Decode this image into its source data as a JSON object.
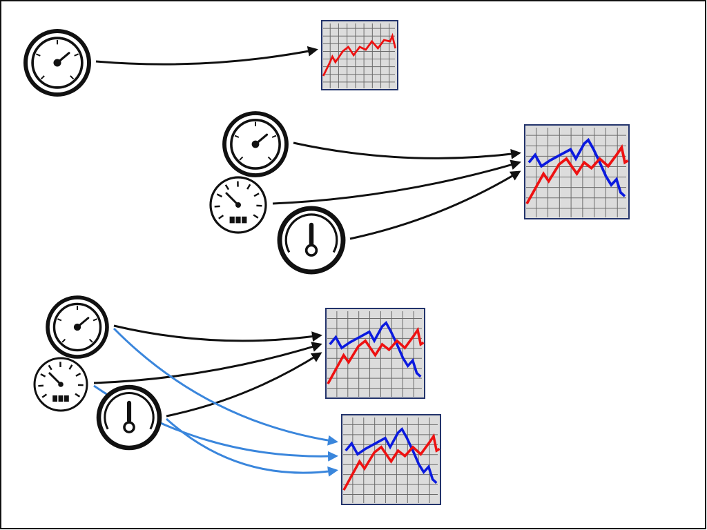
{
  "colors": {
    "frame": "#111111",
    "arrow_black": "#111111",
    "arrow_blue": "#3a86dc",
    "chart_bg": "#dcdcdc",
    "chart_border": "#22336b",
    "chart_grid": "#6b6b6b",
    "series_red": "#ee1111",
    "series_blue": "#0b1adf",
    "gauge_ink": "#111111",
    "gauge_face": "#ffffff"
  },
  "icons": {
    "dial_gauge": "dial-gauge-icon",
    "speedometer": "speedometer-icon",
    "thermometer_gauge": "thermometer-gauge-icon",
    "line_chart": "line-chart-icon"
  },
  "scenarios": [
    {
      "name": "single-source-to-single-chart",
      "sources": [
        "dial-gauge"
      ],
      "charts": [
        {
          "series": [
            "red"
          ]
        }
      ],
      "links": [
        {
          "from": "dial-gauge",
          "to": 0,
          "color": "black"
        }
      ]
    },
    {
      "name": "three-sources-to-one-chart",
      "sources": [
        "dial-gauge",
        "speedometer",
        "thermometer-gauge"
      ],
      "charts": [
        {
          "series": [
            "blue",
            "red"
          ]
        }
      ],
      "links": [
        {
          "from": "dial-gauge",
          "to": 0,
          "color": "black"
        },
        {
          "from": "speedometer",
          "to": 0,
          "color": "black"
        },
        {
          "from": "thermometer-gauge",
          "to": 0,
          "color": "black"
        }
      ]
    },
    {
      "name": "three-sources-to-two-charts",
      "sources": [
        "dial-gauge",
        "speedometer",
        "thermometer-gauge"
      ],
      "charts": [
        {
          "series": [
            "blue",
            "red"
          ]
        },
        {
          "series": [
            "blue",
            "red"
          ]
        }
      ],
      "links": [
        {
          "from": "dial-gauge",
          "to": 0,
          "color": "black"
        },
        {
          "from": "speedometer",
          "to": 0,
          "color": "black"
        },
        {
          "from": "thermometer-gauge",
          "to": 0,
          "color": "black"
        },
        {
          "from": "dial-gauge",
          "to": 1,
          "color": "blue"
        },
        {
          "from": "speedometer",
          "to": 1,
          "color": "blue"
        },
        {
          "from": "thermometer-gauge",
          "to": 1,
          "color": "blue"
        }
      ]
    }
  ]
}
